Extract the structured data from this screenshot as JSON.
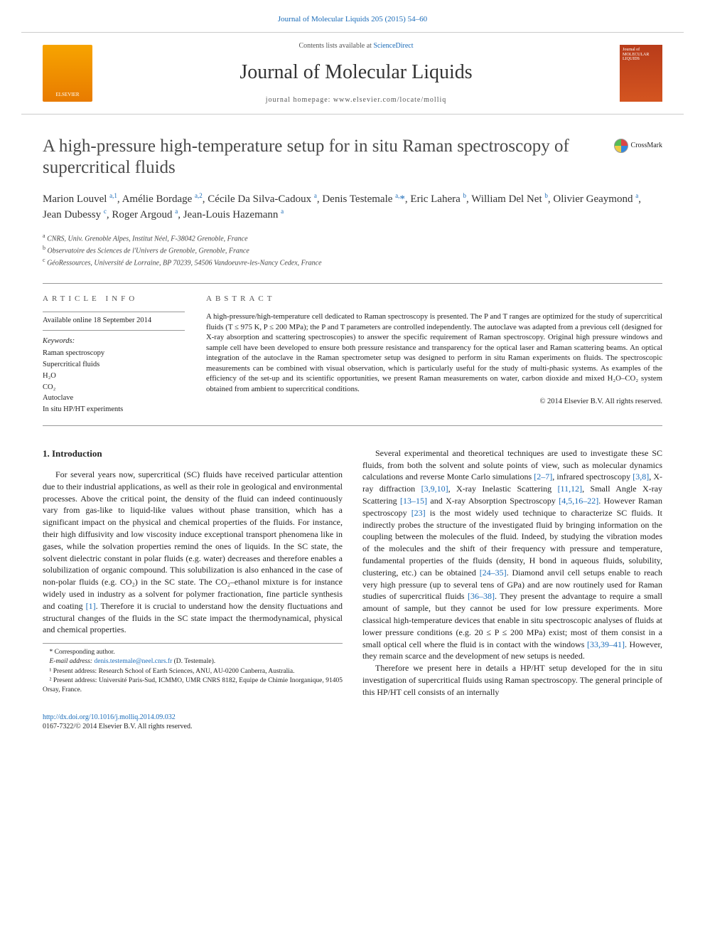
{
  "header": {
    "top_link": "Journal of Molecular Liquids 205 (2015) 54–60",
    "elsevier_label": "ELSEVIER",
    "contents_prefix": "Contents lists available at ",
    "contents_link": "ScienceDirect",
    "journal_name": "Journal of Molecular Liquids",
    "homepage": "journal homepage: www.elsevier.com/locate/molliq",
    "cover_text": "Journal of MOLECULAR LIQUIDS",
    "crossmark": "CrossMark"
  },
  "article": {
    "title": "A high-pressure high-temperature setup for in situ Raman spectroscopy of supercritical fluids",
    "authors_html": "Marion Louvel <sup>a,1</sup>, Amélie Bordage <sup>a,2</sup>, Cécile Da Silva-Cadoux <sup>a</sup>, Denis Testemale <sup>a,</sup><span class='star'>*</span>, Eric Lahera <sup>b</sup>, William Del Net <sup>b</sup>, Olivier Geaymond <sup>a</sup>, Jean Dubessy <sup>c</sup>, Roger Argoud <sup>a</sup>, Jean-Louis Hazemann <sup>a</sup>",
    "affiliations": [
      {
        "sup": "a",
        "text": "CNRS, Univ. Grenoble Alpes, Institut Néel, F-38042 Grenoble, France"
      },
      {
        "sup": "b",
        "text": "Observatoire des Sciences de l'Univers de Grenoble, Grenoble, France"
      },
      {
        "sup": "c",
        "text": "GéoRessources, Université de Lorraine, BP 70239, 54506 Vandoeuvre-les-Nancy Cedex, France"
      }
    ]
  },
  "info": {
    "section_label": "ARTICLE INFO",
    "available": "Available online 18 September 2014",
    "keywords_label": "Keywords:",
    "keywords": [
      "Raman spectroscopy",
      "Supercritical fluids",
      "H₂O",
      "CO₂",
      "Autoclave",
      "In situ HP/HT experiments"
    ]
  },
  "abstract": {
    "section_label": "ABSTRACT",
    "text": "A high-pressure/high-temperature cell dedicated to Raman spectroscopy is presented. The P and T ranges are optimized for the study of supercritical fluids (T ≤ 975 K, P ≤ 200 MPa); the P and T parameters are controlled independently. The autoclave was adapted from a previous cell (designed for X-ray absorption and scattering spectroscopies) to answer the specific requirement of Raman spectroscopy. Original high pressure windows and sample cell have been developed to ensure both pressure resistance and transparency for the optical laser and Raman scattering beams. An optical integration of the autoclave in the Raman spectrometer setup was designed to perform in situ Raman experiments on fluids. The spectroscopic measurements can be combined with visual observation, which is particularly useful for the study of multi-phasic systems. As examples of the efficiency of the set-up and its scientific opportunities, we present Raman measurements on water, carbon dioxide and mixed H₂O–CO₂ system obtained from ambient to supercritical conditions.",
    "copyright": "© 2014 Elsevier B.V. All rights reserved."
  },
  "body": {
    "heading": "1. Introduction",
    "p1": "For several years now, supercritical (SC) fluids have received particular attention due to their industrial applications, as well as their role in geological and environmental processes. Above the critical point, the density of the fluid can indeed continuously vary from gas-like to liquid-like values without phase transition, which has a significant impact on the physical and chemical properties of the fluids. For instance, their high diffusivity and low viscosity induce exceptional transport phenomena like in gases, while the solvation properties remind the ones of liquids. In the SC state, the solvent dielectric constant in polar fluids (e.g. water) decreases and therefore enables a solubilization of organic compound. This solubilization is also enhanced in the case of non-polar fluids (e.g. CO₂) in the SC state. The CO₂–ethanol mixture is for instance widely used in industry as a solvent for polymer fractionation, fine particle synthesis and coating ",
    "p1_ref": "[1]",
    "p1_tail": ". Therefore it is crucial to understand how the density fluctuations and structural changes of the fluids in the SC state impact the thermodynamical, physical and chemical properties.",
    "p2a": "Several experimental and theoretical techniques are used to investigate these SC fluids, from both the solvent and solute points of view, such as molecular dynamics calculations and reverse Monte Carlo simulations ",
    "r2": "[2–7]",
    "p2b": ", infrared spectroscopy ",
    "r3": "[3,8]",
    "p2c": ", X-ray diffraction ",
    "r4": "[3,9,10]",
    "p2d": ", X-ray Inelastic Scattering ",
    "r5": "[11,12]",
    "p2e": ", Small Angle X-ray Scattering ",
    "r6": "[13–15]",
    "p2f": " and X-ray Absorption Spectroscopy ",
    "r7": "[4,5,16–22]",
    "p2g": ". However Raman spectroscopy ",
    "r8": "[23]",
    "p2h": " is the most widely used technique to characterize SC fluids. It indirectly probes the structure of the investigated fluid by bringing information on the coupling between the molecules of the fluid. Indeed, by studying the vibration modes of the molecules and the shift of their frequency with pressure and temperature, fundamental properties of the fluids (density, H bond in aqueous fluids, solubility, clustering, etc.) can be obtained ",
    "r9": "[24–35]",
    "p2i": ". Diamond anvil cell setups enable to reach very high pressure (up to several tens of GPa) and are now routinely used for Raman studies of supercritical fluids ",
    "r10": "[36–38]",
    "p2j": ". They present the advantage to require a small amount of sample, but they cannot be used for low pressure experiments. More classical high-temperature devices that enable in situ spectroscopic analyses of fluids at lower pressure conditions (e.g. 20 ≤ P ≤ 200 MPa) exist; most of them consist in a small optical cell where the fluid is in contact with the windows ",
    "r11": "[33,39–41]",
    "p2k": ". However, they remain scarce and the development of new setups is needed.",
    "p3": "Therefore we present here in details a HP/HT setup developed for the in situ investigation of supercritical fluids using Raman spectroscopy. The general principle of this HP/HT cell consists of an internally"
  },
  "footnotes": {
    "corresponding": "* Corresponding author.",
    "email_label": "E-mail address: ",
    "email": "denis.testemale@neel.cnrs.fr",
    "email_who": " (D. Testemale).",
    "n1": "¹ Present address: Research School of Earth Sciences, ANU, AU-0200 Canberra, Australia.",
    "n2": "² Present address: Université Paris-Sud, ICMMO, UMR CNRS 8182, Equipe de Chimie Inorganique, 91405 Orsay, France."
  },
  "footer": {
    "doi": "http://dx.doi.org/10.1016/j.molliq.2014.09.032",
    "issn": "0167-7322/© 2014 Elsevier B.V. All rights reserved."
  },
  "colors": {
    "link": "#1a6bb8",
    "orange_top": "#f7a400",
    "orange_bot": "#e87b00",
    "cover_top": "#b83c1a",
    "cover_bot": "#d45520",
    "text": "#222222",
    "divider": "#999999"
  },
  "fonts": {
    "body_pt": 12,
    "title_pt": 25,
    "journal_pt": 28,
    "abstract_pt": 10.8,
    "keywords_pt": 10.5,
    "footnote_pt": 9.5,
    "family": "Georgia / Times-like serif"
  }
}
